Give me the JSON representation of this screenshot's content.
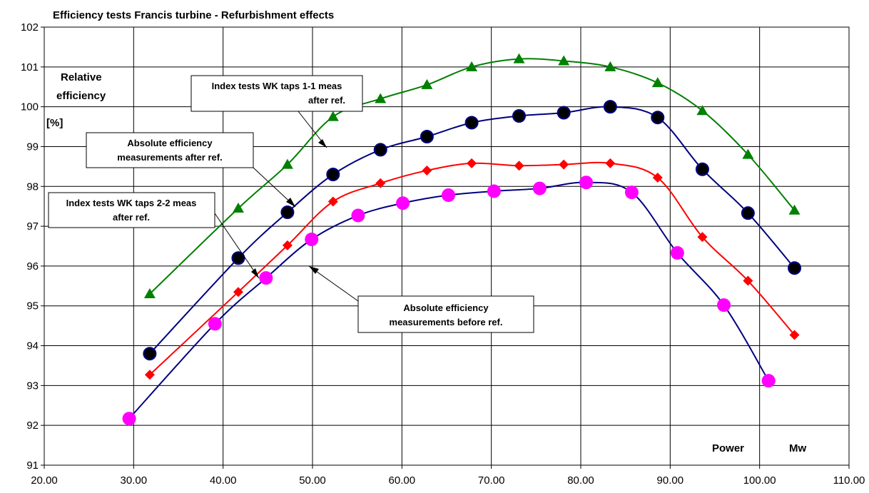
{
  "chart_data": {
    "type": "line",
    "title": "Efficiency tests Francis turbine - Refurbishment effects",
    "ylabel_lines": [
      "Relative",
      "efficiency"
    ],
    "yunit": "[%]",
    "xlabel": "Power",
    "xunit": "Mw",
    "xlim": [
      20,
      110
    ],
    "ylim": [
      91,
      102
    ],
    "xticks": [
      "20.00",
      "30.00",
      "40.00",
      "50.00",
      "60.00",
      "70.00",
      "80.00",
      "90.00",
      "100.00",
      "110.00"
    ],
    "yticks": [
      "91",
      "92",
      "93",
      "94",
      "95",
      "96",
      "97",
      "98",
      "99",
      "100",
      "101",
      "102"
    ],
    "grid": true,
    "series": [
      {
        "key": "green",
        "color": "#008000",
        "marker": "triangle",
        "x": [
          31.8,
          41.7,
          47.2,
          52.3,
          57.6,
          62.8,
          67.8,
          73.1,
          78.1,
          83.3,
          88.6,
          93.6,
          98.7,
          103.9
        ],
        "y": [
          95.3,
          97.45,
          98.55,
          99.75,
          100.2,
          100.55,
          101.0,
          101.2,
          101.15,
          101.0,
          100.6,
          99.9,
          98.8,
          97.4
        ]
      },
      {
        "key": "navy",
        "color": "#000080",
        "marker": "dot",
        "x": [
          31.8,
          41.7,
          47.2,
          52.3,
          57.6,
          62.8,
          67.8,
          73.1,
          78.1,
          83.3,
          88.6,
          93.6,
          98.7,
          103.9
        ],
        "y": [
          93.8,
          96.2,
          97.35,
          98.3,
          98.92,
          99.25,
          99.6,
          99.77,
          99.85,
          100.0,
          99.73,
          98.43,
          97.33,
          95.95
        ]
      },
      {
        "key": "red",
        "color": "#ff0000",
        "marker": "diamond",
        "x": [
          31.8,
          41.7,
          47.2,
          52.3,
          57.6,
          62.8,
          67.8,
          73.1,
          78.1,
          83.3,
          88.6,
          93.6,
          98.7,
          103.9
        ],
        "y": [
          93.27,
          95.35,
          96.52,
          97.62,
          98.08,
          98.4,
          98.58,
          98.52,
          98.55,
          98.58,
          98.22,
          96.73,
          95.63,
          94.27
        ]
      },
      {
        "key": "magenta",
        "color": "#000080",
        "marker_color": "#ff00ff",
        "marker": "bigdot",
        "x": [
          29.5,
          39.1,
          44.8,
          49.9,
          55.1,
          60.1,
          65.2,
          70.3,
          75.4,
          80.6,
          85.7,
          90.8,
          96.0,
          101.0
        ],
        "y": [
          92.17,
          94.55,
          95.7,
          96.67,
          97.27,
          97.58,
          97.78,
          97.88,
          97.95,
          98.1,
          97.85,
          96.33,
          95.02,
          93.12
        ]
      }
    ],
    "annotations": [
      {
        "lines": [
          "Index tests WK taps 1-1 meas",
          "after ref."
        ]
      },
      {
        "lines": [
          "Absolute efficiency",
          "measurements after ref."
        ]
      },
      {
        "lines": [
          "Index tests WK taps 2-2 meas",
          "after ref."
        ]
      },
      {
        "lines": [
          "Absolute efficiency",
          "measurements before ref."
        ]
      }
    ]
  }
}
